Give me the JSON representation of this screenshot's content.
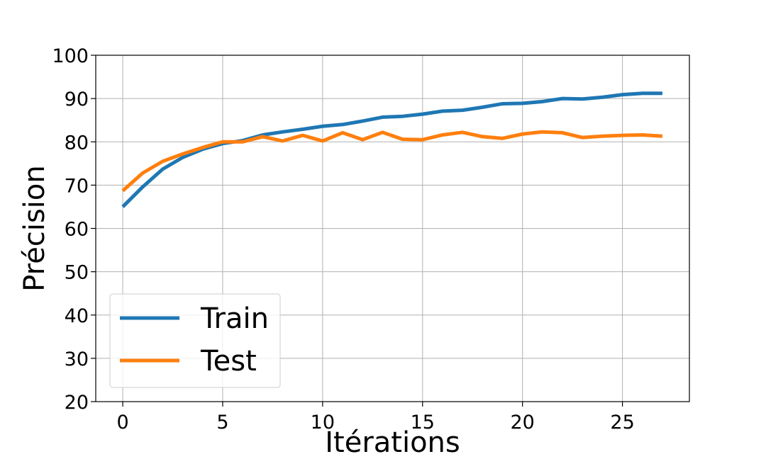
{
  "chart_data": {
    "type": "line",
    "title": "",
    "xlabel": "Itérations",
    "ylabel": "Précision",
    "xlim": [
      -1.35,
      28.35
    ],
    "ylim": [
      20,
      100
    ],
    "xticks": [
      0,
      5,
      10,
      15,
      20,
      25
    ],
    "yticks": [
      20,
      30,
      40,
      50,
      60,
      70,
      80,
      90,
      100
    ],
    "grid": true,
    "legend_position": "lower-left",
    "x": [
      0,
      1,
      2,
      3,
      4,
      5,
      6,
      7,
      8,
      9,
      10,
      11,
      12,
      13,
      14,
      15,
      16,
      17,
      18,
      19,
      20,
      21,
      22,
      23,
      24,
      25,
      26,
      27
    ],
    "series": [
      {
        "name": "Train",
        "color": "#1f77b4",
        "values": [
          65.0,
          69.6,
          73.7,
          76.4,
          78.3,
          79.6,
          80.3,
          81.6,
          82.3,
          82.9,
          83.6,
          84.0,
          84.8,
          85.7,
          85.9,
          86.4,
          87.1,
          87.3,
          88.0,
          88.8,
          88.9,
          89.3,
          90.0,
          89.9,
          90.3,
          90.9,
          91.2,
          91.2
        ]
      },
      {
        "name": "Test",
        "color": "#ff7f0e",
        "values": [
          68.7,
          72.8,
          75.5,
          77.2,
          78.7,
          80.0,
          80.0,
          81.2,
          80.2,
          81.5,
          80.2,
          82.1,
          80.5,
          82.2,
          80.6,
          80.5,
          81.6,
          82.2,
          81.2,
          80.8,
          81.8,
          82.3,
          82.1,
          81.0,
          81.3,
          81.5,
          81.6,
          81.3
        ]
      }
    ]
  }
}
